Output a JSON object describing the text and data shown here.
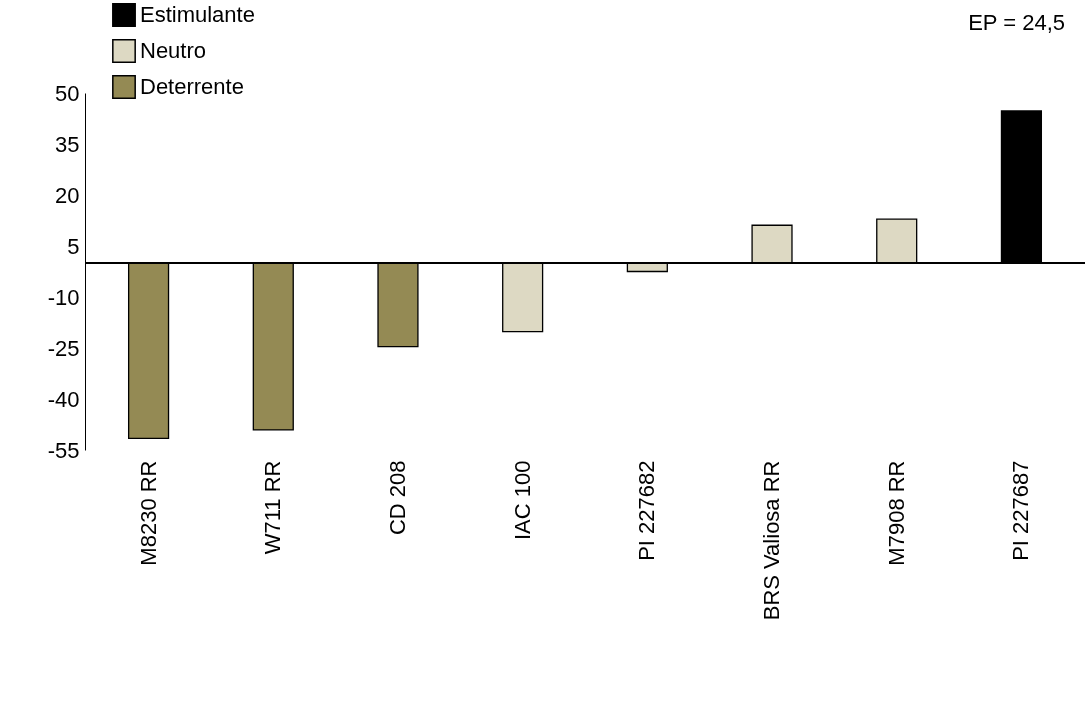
{
  "chart_data": {
    "type": "bar",
    "categories": [
      "M8230 RR",
      "W711 RR",
      "CD 208",
      "IAC 100",
      "PI 227682",
      "BRS Valiosa RR",
      "M7908 RR",
      "PI 227687"
    ],
    "series": [
      {
        "name": "Estimulante",
        "color": "#000000",
        "values": [
          null,
          null,
          null,
          null,
          null,
          null,
          null,
          44.7
        ]
      },
      {
        "name": "Neutro",
        "color": "#ddd9c3",
        "values": [
          null,
          null,
          null,
          -20.2,
          -2.5,
          11.1,
          12.9,
          null
        ]
      },
      {
        "name": "Deterrente",
        "color": "#948a54",
        "values": [
          -51.6,
          -49.1,
          -24.6,
          null,
          null,
          null,
          null,
          null
        ]
      }
    ],
    "ylim": [
      -55,
      50
    ],
    "yticks": [
      50,
      35,
      20,
      5,
      -10,
      -25,
      -40,
      -55
    ],
    "grid": false,
    "legend": "top left",
    "annotations": [
      "EP = 24,5"
    ]
  }
}
